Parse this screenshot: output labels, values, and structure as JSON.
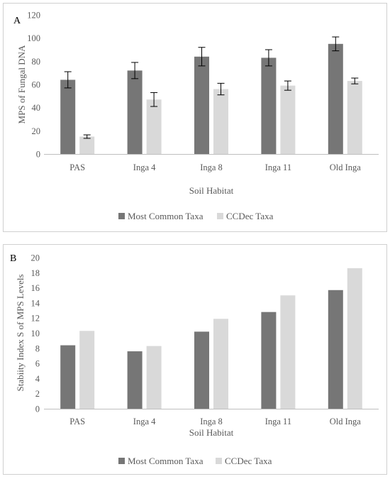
{
  "colors": {
    "most_common": "#767676",
    "ccdec": "#d9d9d9",
    "axis": "#bfbfbf",
    "errorbar": "#000000",
    "frame": "#d0d0d0"
  },
  "chart_data": [
    {
      "panel": "A",
      "type": "bar",
      "title": "",
      "xlabel": "Soil Habitat",
      "ylabel": "MPS of Fungal DNA",
      "ylim": [
        0,
        120
      ],
      "yticks": [
        0,
        20,
        40,
        60,
        80,
        100,
        120
      ],
      "grid": false,
      "legend_position": "bottom",
      "categories": [
        "PAS",
        "Inga 4",
        "Inga 8",
        "Inga 11",
        "Old Inga"
      ],
      "series": [
        {
          "name": "Most Common Taxa",
          "values": [
            64,
            72,
            84,
            83,
            95
          ],
          "error": [
            7,
            7,
            8,
            7,
            6
          ]
        },
        {
          "name": "CCDec Taxa",
          "values": [
            15,
            47,
            56,
            59,
            63
          ],
          "error": [
            1.5,
            6,
            5,
            4,
            2.5
          ]
        }
      ]
    },
    {
      "panel": "B",
      "type": "bar",
      "title": "",
      "xlabel": "Soil Habitat",
      "ylabel": "Stabiity Index S of MPS Levels",
      "ylim": [
        0,
        20
      ],
      "yticks": [
        0,
        2,
        4,
        6,
        8,
        10,
        12,
        14,
        16,
        18,
        20
      ],
      "grid": false,
      "legend_position": "bottom",
      "categories": [
        "PAS",
        "Inga 4",
        "Inga 8",
        "Inga 11",
        "Old Inga"
      ],
      "series": [
        {
          "name": "Most Common Taxa",
          "values": [
            8.4,
            7.6,
            10.2,
            12.8,
            15.7
          ]
        },
        {
          "name": "CCDec Taxa",
          "values": [
            10.3,
            8.3,
            11.9,
            15.0,
            18.6
          ]
        }
      ]
    }
  ]
}
